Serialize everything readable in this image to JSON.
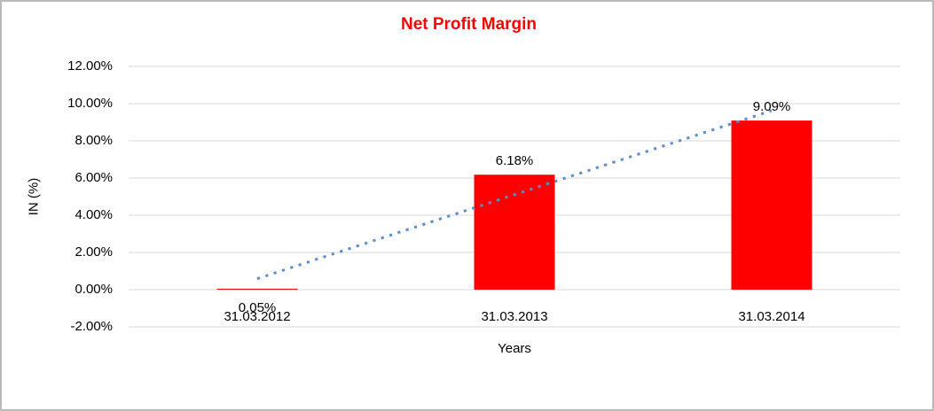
{
  "title": "Net Profit Margin",
  "chart_data": {
    "type": "bar",
    "title": "Net Profit Margin",
    "title_color": "#ff0000",
    "categories": [
      "31.03.2012",
      "31.03.2013",
      "31.03.2014"
    ],
    "values": [
      0.05,
      6.18,
      9.09
    ],
    "data_labels": [
      "0.05%",
      "6.18%",
      "9.09%"
    ],
    "xlabel": "Years",
    "ylabel": "IN (%)",
    "ylim": [
      -2,
      12
    ],
    "ytick_step": 2,
    "ytick_labels_top_to_bottom": [
      "12.00%",
      "10.00%",
      "8.00%",
      "6.00%",
      "4.00%",
      "2.00%",
      "0.00%",
      "-2.00%"
    ],
    "bar_color": "#ff0000",
    "gridlines": true,
    "gridline_color": "#d9d9d9",
    "trendline": {
      "type": "linear",
      "style": "dotted",
      "color": "#5b8ecb"
    },
    "legend": "none"
  }
}
